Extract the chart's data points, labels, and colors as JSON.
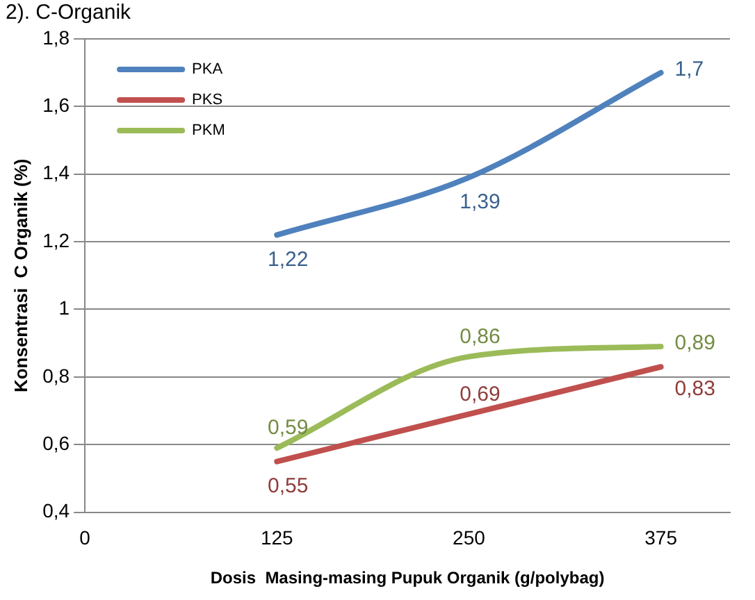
{
  "chart_data": {
    "type": "line",
    "title": "2). C-Organik",
    "xlabel": "Dosis  Masing-masing Pupuk Organik (g/polybag)",
    "ylabel": "Konsentrasi  C Organik (%)",
    "x": [
      125,
      250,
      375
    ],
    "series": [
      {
        "name": "PKA",
        "color": "#4f81bd",
        "values": [
          1.22,
          1.39,
          1.7
        ],
        "value_labels": [
          "1,22",
          "1,39",
          "1,7"
        ]
      },
      {
        "name": "PKS",
        "color": "#c0504d",
        "values": [
          0.55,
          0.69,
          0.83
        ],
        "value_labels": [
          "0,55",
          "0,69",
          "0,83"
        ]
      },
      {
        "name": "PKM",
        "color": "#9bbb59",
        "values": [
          0.59,
          0.86,
          0.89
        ],
        "value_labels": [
          "0,59",
          "0,86",
          "0,89"
        ]
      }
    ],
    "xlim": [
      0,
      420
    ],
    "xticks": [
      0,
      125,
      250,
      375
    ],
    "ylim": [
      0.4,
      1.8
    ],
    "yticks": [
      {
        "value": 0.4,
        "label": "0,4"
      },
      {
        "value": 0.6,
        "label": "0,6"
      },
      {
        "value": 0.8,
        "label": "0,8"
      },
      1,
      {
        "value": 1.2,
        "label": "1,2"
      },
      {
        "value": 1.4,
        "label": "1,4"
      },
      {
        "value": 1.6,
        "label": "1,6"
      },
      {
        "value": 1.8,
        "label": "1,8"
      }
    ],
    "grid": "y",
    "legend": "top left",
    "marker": "none",
    "line_style": "solid"
  }
}
